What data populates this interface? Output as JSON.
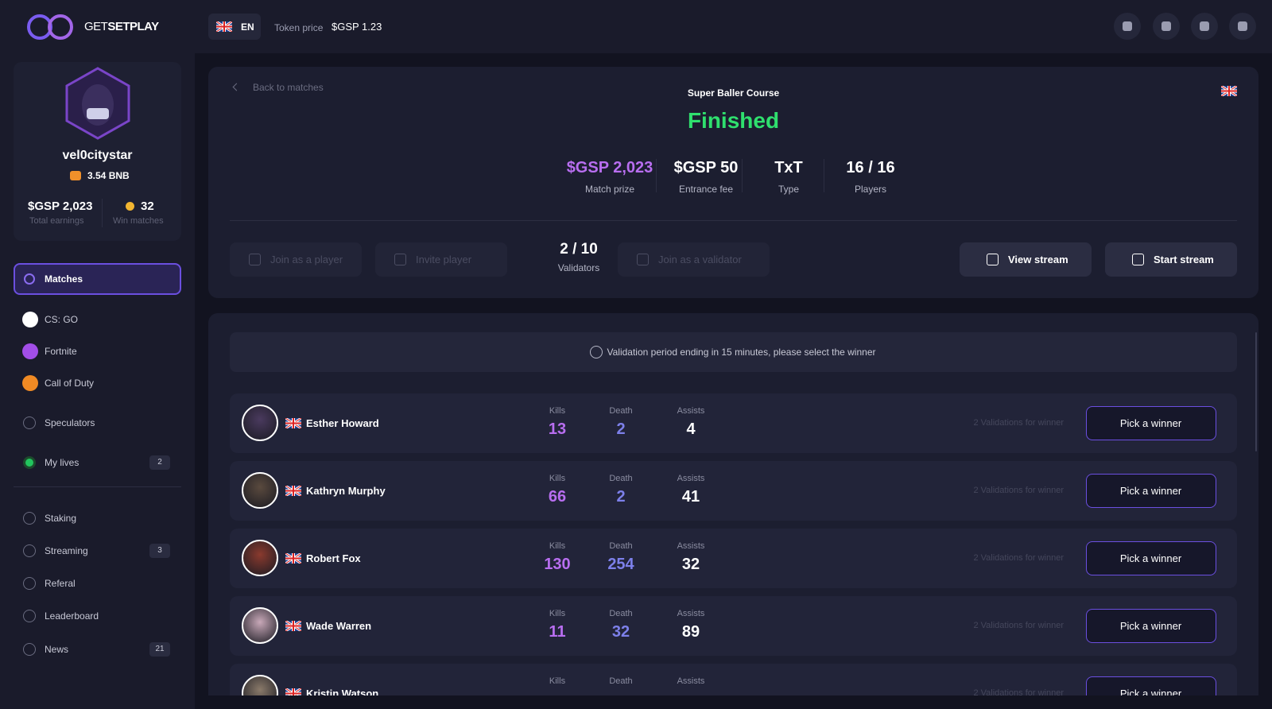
{
  "header": {
    "brand_light": "GET",
    "brand_bold": "SETPLAY",
    "language": "EN",
    "token_price_label": "Token price",
    "token_price": "$GSP 1.23"
  },
  "profile": {
    "username": "vel0citystar",
    "balance": "3.54 BNB",
    "stats": [
      {
        "value": "$GSP 2,023",
        "label": "Total earnings"
      },
      {
        "value": "32",
        "label": "Win matches"
      }
    ]
  },
  "nav": {
    "matches": "Matches",
    "games": [
      "CS: GO",
      "Fortnite",
      "Call of Duty"
    ],
    "section1": [
      {
        "label": "Speculators"
      },
      {
        "label": "My lives",
        "badge": "2"
      }
    ],
    "section2": [
      {
        "label": "Staking"
      },
      {
        "label": "Streaming",
        "badge": "3"
      },
      {
        "label": "Referal"
      },
      {
        "label": "Leaderboard"
      },
      {
        "label": "News",
        "badge": "21"
      }
    ]
  },
  "match": {
    "back": "Back to matches",
    "title": "Super Baller Course",
    "status": "Finished",
    "stats": [
      {
        "value": "$GSP 2,023",
        "label": "Match prize"
      },
      {
        "value": "$GSP 50",
        "label": "Entrance fee"
      },
      {
        "value": "TxT",
        "label": "Type"
      },
      {
        "value": "16 / 16",
        "label": "Players"
      }
    ],
    "actions": {
      "join_player": "Join as a player",
      "invite": "Invite player",
      "validators_value": "2 / 10",
      "validators_label": "Validators",
      "join_validator": "Join as a validator",
      "view_stream": "View stream",
      "start_stream": "Start stream"
    }
  },
  "notice": "Validation period ending in 15 minutes, please select the winner",
  "players": {
    "columns": {
      "kills": "Kills",
      "death": "Death",
      "assists": "Assists"
    },
    "validations_note": "2 Validations for winner",
    "action": "Pick a winner",
    "rows": [
      {
        "name": "Esther Howard",
        "kills": 13,
        "death": 2,
        "assists": 4
      },
      {
        "name": "Kathryn Murphy",
        "kills": 66,
        "death": 2,
        "assists": 41
      },
      {
        "name": "Robert Fox",
        "kills": 130,
        "death": 254,
        "assists": 32
      },
      {
        "name": "Wade Warren",
        "kills": 11,
        "death": 32,
        "assists": 89
      },
      {
        "name": "Kristin Watson"
      }
    ]
  }
}
